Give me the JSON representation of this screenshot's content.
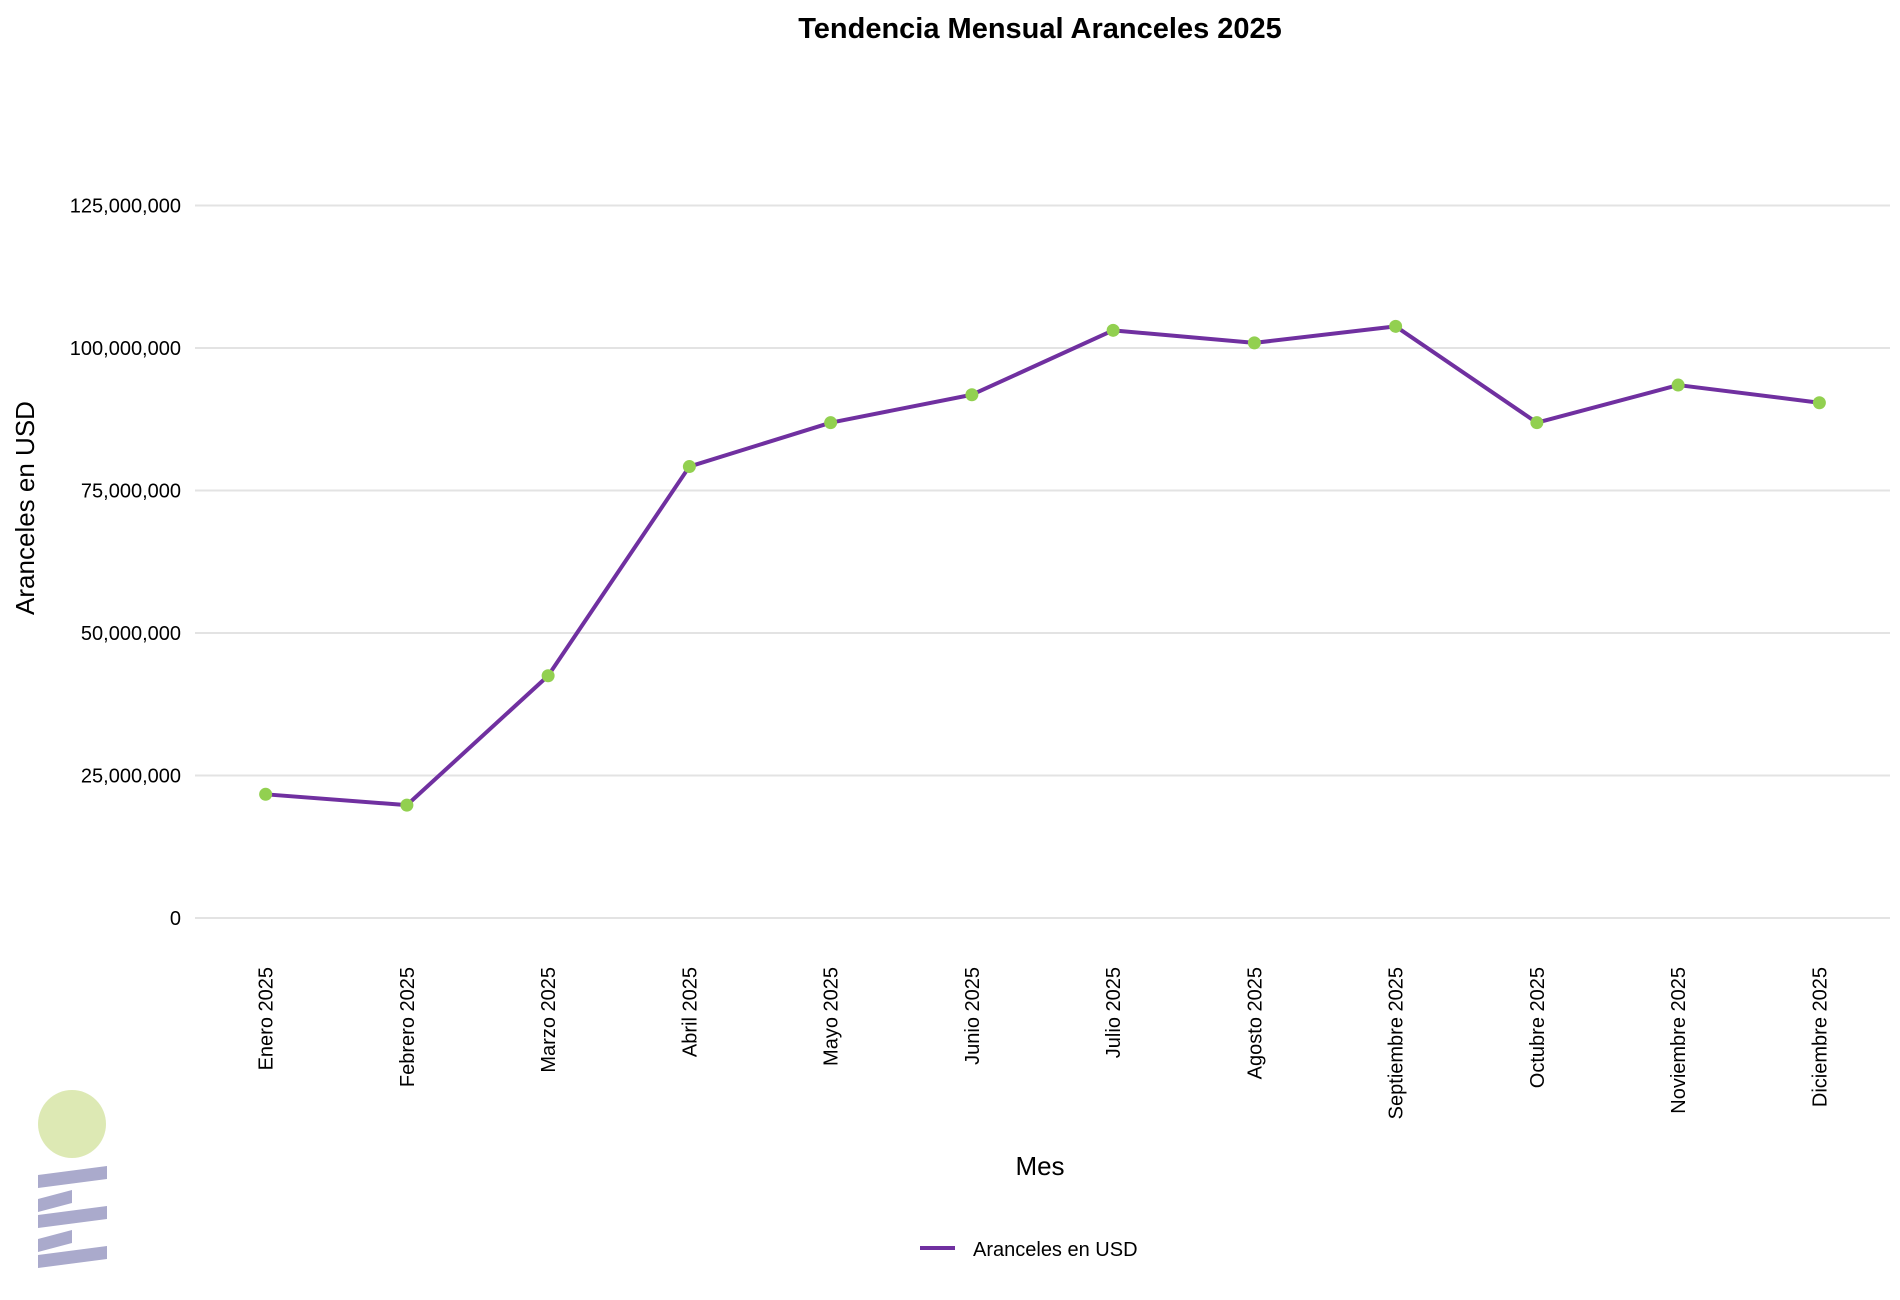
{
  "chart_data": {
    "type": "line",
    "title": "Tendencia Mensual Aranceles  2025",
    "xlabel": "Mes",
    "ylabel": "Aranceles en USD",
    "categories": [
      "Enero 2025",
      "Febrero 2025",
      "Marzo 2025",
      "Abril 2025",
      "Mayo 2025",
      "Junio 2025",
      "Julio 2025",
      "Agosto 2025",
      "Septiembre 2025",
      "Octubre 2025",
      "Noviembre 2025",
      "Diciembre 2025"
    ],
    "series": [
      {
        "name": "Aranceles en USD",
        "values": [
          21700000,
          19800000,
          42500000,
          79200000,
          86900000,
          91800000,
          103100000,
          100900000,
          103800000,
          86900000,
          93500000,
          90400000
        ]
      }
    ],
    "ylim": [
      0,
      140000000
    ],
    "yticks": [
      0,
      25000000,
      50000000,
      75000000,
      100000000,
      125000000
    ],
    "ytick_labels": [
      "0",
      "25,000,000",
      "50,000,000",
      "75,000,000",
      "100,000,000",
      "125,000,000"
    ],
    "grid": "horizontal",
    "legend_position": "bottom-center",
    "colors": {
      "line": "#7030a0",
      "marker": "#92d050",
      "grid": "#e3e3e3",
      "logo_circle": "#dde9b4",
      "logo_bars": "#aaaacc"
    }
  }
}
